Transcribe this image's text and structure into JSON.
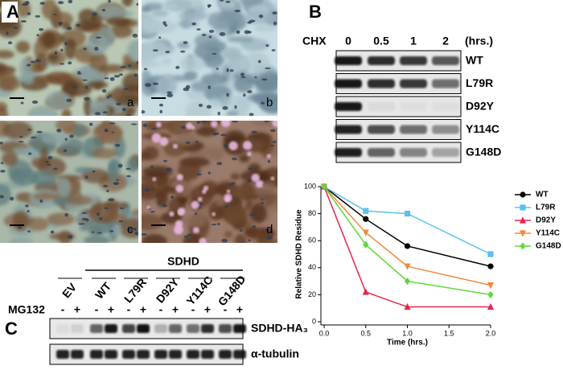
{
  "panel_labels": [
    "A",
    "B",
    "C"
  ],
  "panel_a": {
    "image_labels": [
      "a",
      "b",
      "c",
      "d"
    ]
  },
  "panel_b": {
    "treatment": "CHX",
    "times": [
      "0",
      "0.5",
      "1",
      "2"
    ],
    "time_unit": "(hrs.)",
    "rows": [
      "WT",
      "L79R",
      "D92Y",
      "Y114C",
      "G148D"
    ]
  },
  "chart_data": {
    "type": "line",
    "y_label": "Relative SDHD Residue",
    "x_label": "Time (hrs.)",
    "x": [
      0,
      0.5,
      1,
      2
    ],
    "xlim": [
      0,
      2
    ],
    "xticks": [
      {
        "value": 0,
        "label": "0.0"
      },
      0.5,
      {
        "value": 1,
        "label": "1.0"
      },
      1.5,
      {
        "value": 2,
        "label": "2.0"
      }
    ],
    "ylim": [
      0,
      100
    ],
    "yticks": [
      0,
      20,
      40,
      60,
      80,
      100
    ],
    "grid": false,
    "legend": "right",
    "series": [
      {
        "name": "WT",
        "color": "#000000",
        "marker": "circle",
        "values": [
          100,
          76,
          56,
          41
        ]
      },
      {
        "name": "L79R",
        "color": "#5bc0eb",
        "marker": "square",
        "values": [
          100,
          82,
          80,
          50
        ]
      },
      {
        "name": "D92Y",
        "color": "#e8254a",
        "marker": "triangle-up",
        "values": [
          100,
          22,
          11,
          11
        ]
      },
      {
        "name": "Y114C",
        "color": "#f5883a",
        "marker": "triangle-down",
        "values": [
          100,
          66,
          41,
          27
        ]
      },
      {
        "name": "G148D",
        "color": "#5fd83a",
        "marker": "diamond",
        "values": [
          100,
          57,
          30,
          20
        ]
      }
    ]
  },
  "panel_c": {
    "group_label": "SDHD",
    "lanes": [
      "EV",
      "WT",
      "L79R",
      "D92Y",
      "Y114C",
      "G148D"
    ],
    "treatment": "MG132",
    "conditions": [
      "-",
      "+"
    ],
    "blots": [
      "SDHD-HA₃",
      "α-tubulin"
    ]
  }
}
